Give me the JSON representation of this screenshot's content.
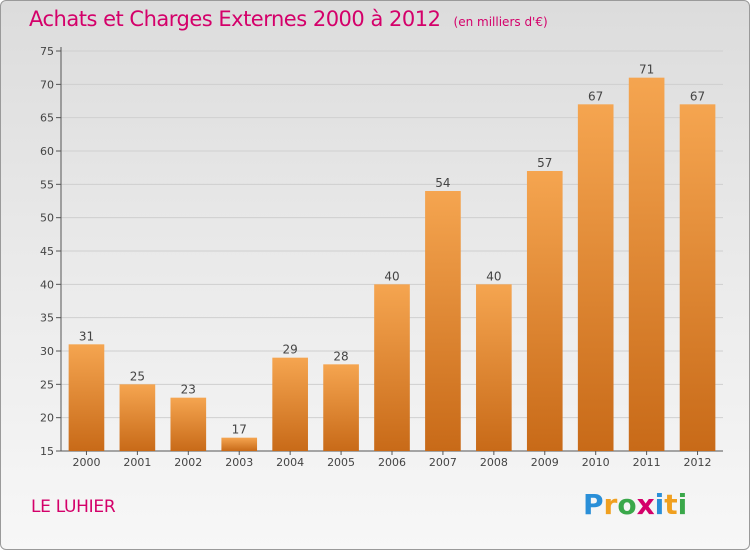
{
  "header": {
    "title": "Achats et Charges Externes 2000 à 2012",
    "unit": "(en milliers d'€)"
  },
  "footer": {
    "location": "LE LUHIER",
    "logo_text": "Proxiti"
  },
  "colors": {
    "bar_light": "#f5a550",
    "bar_dark": "#c86a18",
    "title": "#d4006a"
  },
  "chart_data": {
    "type": "bar",
    "title": "Achats et Charges Externes 2000 à 2012",
    "subtitle": "(en milliers d'€)",
    "categories": [
      "2000",
      "2001",
      "2002",
      "2003",
      "2004",
      "2005",
      "2006",
      "2007",
      "2008",
      "2009",
      "2010",
      "2011",
      "2012"
    ],
    "values": [
      31,
      25,
      23,
      17,
      29,
      28,
      40,
      54,
      40,
      57,
      67,
      71,
      67
    ],
    "data_labels": [
      "31",
      "25",
      "23",
      "17",
      "29",
      "28",
      "40",
      "54",
      "40",
      "57",
      "67",
      "71",
      "67"
    ],
    "ylim": [
      15,
      75
    ],
    "yticks": [
      15,
      20,
      25,
      30,
      35,
      40,
      45,
      50,
      55,
      60,
      65,
      70,
      75
    ],
    "grid": true,
    "legend": "none"
  }
}
